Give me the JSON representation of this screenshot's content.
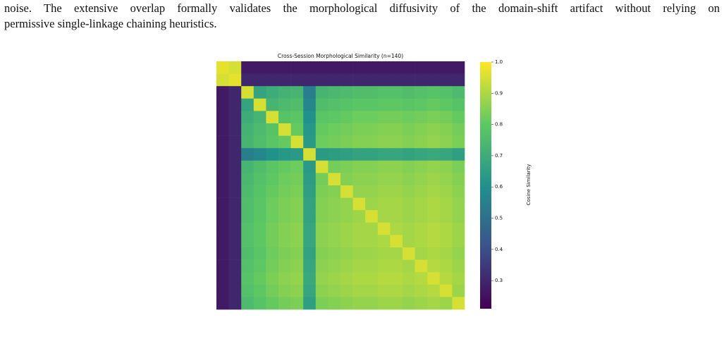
{
  "text": {
    "lines": [
      "noise.  The extensive overlap formally validates the morphological diffusivity of the domain-shift artifact without relying on",
      "permissive single-linkage chaining heuristics."
    ]
  },
  "chart_data": {
    "type": "heatmap",
    "title": "Cross-Session Morphological Similarity (n=140)",
    "colorbar_label": "Cosine Similarity",
    "colormap": "viridis",
    "ylim": [
      0.21,
      1.0
    ],
    "yticks": [
      0.3,
      0.4,
      0.5,
      0.6,
      0.7,
      0.8,
      0.9,
      {
        "value": 1,
        "label": "1.0"
      }
    ],
    "values": [
      [
        0.97,
        0.95,
        0.27,
        0.27,
        0.27,
        0.27,
        0.27,
        0.27,
        0.27,
        0.27,
        0.27,
        0.27,
        0.27,
        0.27,
        0.27,
        0.27,
        0.27,
        0.27,
        0.27,
        0.27
      ],
      [
        0.95,
        0.97,
        0.3,
        0.3,
        0.3,
        0.3,
        0.3,
        0.3,
        0.3,
        0.3,
        0.3,
        0.3,
        0.3,
        0.3,
        0.3,
        0.3,
        0.3,
        0.3,
        0.3,
        0.3
      ],
      [
        0.27,
        0.3,
        0.95,
        0.67,
        0.7,
        0.72,
        0.73,
        0.545,
        0.73,
        0.74,
        0.75,
        0.76,
        0.76,
        0.77,
        0.77,
        0.76,
        0.77,
        0.78,
        0.77,
        0.75
      ],
      [
        0.27,
        0.3,
        0.67,
        0.95,
        0.73,
        0.75,
        0.76,
        0.575,
        0.76,
        0.77,
        0.78,
        0.79,
        0.79,
        0.8,
        0.8,
        0.79,
        0.8,
        0.81,
        0.8,
        0.78
      ],
      [
        0.27,
        0.3,
        0.7,
        0.73,
        0.95,
        0.78,
        0.79,
        0.605,
        0.79,
        0.8,
        0.81,
        0.82,
        0.82,
        0.83,
        0.83,
        0.82,
        0.83,
        0.84,
        0.83,
        0.81
      ],
      [
        0.27,
        0.3,
        0.72,
        0.75,
        0.78,
        0.95,
        0.81,
        0.625,
        0.81,
        0.82,
        0.83,
        0.84,
        0.84,
        0.85,
        0.85,
        0.84,
        0.85,
        0.86,
        0.85,
        0.83
      ],
      [
        0.27,
        0.3,
        0.73,
        0.76,
        0.79,
        0.81,
        0.95,
        0.635,
        0.82,
        0.83,
        0.84,
        0.85,
        0.85,
        0.86,
        0.86,
        0.85,
        0.86,
        0.87,
        0.86,
        0.84
      ],
      [
        0.27,
        0.3,
        0.545,
        0.575,
        0.605,
        0.625,
        0.635,
        0.95,
        0.635,
        0.645,
        0.655,
        0.665,
        0.665,
        0.675,
        0.675,
        0.665,
        0.675,
        0.685,
        0.675,
        0.655
      ],
      [
        0.27,
        0.3,
        0.73,
        0.76,
        0.79,
        0.81,
        0.82,
        0.635,
        0.95,
        0.83,
        0.84,
        0.85,
        0.85,
        0.86,
        0.86,
        0.85,
        0.86,
        0.87,
        0.86,
        0.84
      ],
      [
        0.27,
        0.3,
        0.74,
        0.77,
        0.8,
        0.82,
        0.83,
        0.645,
        0.83,
        0.95,
        0.85,
        0.86,
        0.86,
        0.87,
        0.87,
        0.86,
        0.87,
        0.88,
        0.87,
        0.85
      ],
      [
        0.27,
        0.3,
        0.75,
        0.78,
        0.81,
        0.83,
        0.84,
        0.655,
        0.84,
        0.85,
        0.95,
        0.87,
        0.87,
        0.88,
        0.88,
        0.87,
        0.88,
        0.89,
        0.88,
        0.86
      ],
      [
        0.27,
        0.3,
        0.76,
        0.79,
        0.82,
        0.84,
        0.85,
        0.665,
        0.85,
        0.86,
        0.87,
        0.95,
        0.88,
        0.89,
        0.89,
        0.88,
        0.89,
        0.9,
        0.89,
        0.87
      ],
      [
        0.27,
        0.3,
        0.76,
        0.79,
        0.82,
        0.84,
        0.85,
        0.665,
        0.85,
        0.86,
        0.87,
        0.88,
        0.95,
        0.89,
        0.89,
        0.88,
        0.89,
        0.9,
        0.89,
        0.87
      ],
      [
        0.27,
        0.3,
        0.77,
        0.8,
        0.83,
        0.85,
        0.86,
        0.675,
        0.86,
        0.87,
        0.88,
        0.89,
        0.89,
        0.95,
        0.9,
        0.89,
        0.9,
        0.91,
        0.9,
        0.88
      ],
      [
        0.27,
        0.3,
        0.77,
        0.8,
        0.83,
        0.85,
        0.86,
        0.675,
        0.86,
        0.87,
        0.88,
        0.89,
        0.89,
        0.9,
        0.95,
        0.89,
        0.9,
        0.91,
        0.9,
        0.88
      ],
      [
        0.27,
        0.3,
        0.76,
        0.79,
        0.82,
        0.84,
        0.85,
        0.665,
        0.85,
        0.86,
        0.87,
        0.88,
        0.88,
        0.89,
        0.89,
        0.95,
        0.89,
        0.9,
        0.89,
        0.87
      ],
      [
        0.27,
        0.3,
        0.77,
        0.8,
        0.83,
        0.85,
        0.86,
        0.675,
        0.86,
        0.87,
        0.88,
        0.89,
        0.89,
        0.9,
        0.9,
        0.89,
        0.95,
        0.91,
        0.9,
        0.88
      ],
      [
        0.27,
        0.3,
        0.78,
        0.81,
        0.84,
        0.86,
        0.87,
        0.685,
        0.87,
        0.88,
        0.89,
        0.9,
        0.9,
        0.91,
        0.91,
        0.9,
        0.91,
        0.95,
        0.91,
        0.89
      ],
      [
        0.27,
        0.3,
        0.77,
        0.8,
        0.83,
        0.85,
        0.86,
        0.675,
        0.86,
        0.87,
        0.88,
        0.89,
        0.89,
        0.9,
        0.9,
        0.89,
        0.9,
        0.91,
        0.95,
        0.88
      ],
      [
        0.27,
        0.3,
        0.75,
        0.78,
        0.81,
        0.83,
        0.84,
        0.655,
        0.84,
        0.85,
        0.86,
        0.87,
        0.87,
        0.88,
        0.88,
        0.87,
        0.88,
        0.89,
        0.88,
        0.95
      ]
    ]
  }
}
